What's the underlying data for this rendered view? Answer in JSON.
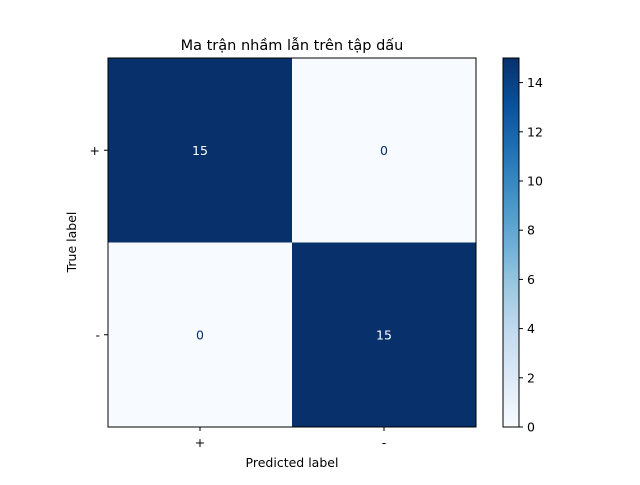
{
  "chart_data": {
    "type": "heatmap",
    "title": "Ma trận nhầm lẫn trên tập dấu",
    "xlabel": "Predicted label",
    "ylabel": "True label",
    "x_categories": [
      "+",
      "-"
    ],
    "y_categories": [
      "+",
      "-"
    ],
    "values": [
      [
        15,
        0
      ],
      [
        0,
        15
      ]
    ],
    "colormap": "Blues",
    "color_low": "#f7fbff",
    "color_high": "#08306b",
    "colorbar": {
      "range": [
        0,
        15
      ],
      "ticks": [
        0,
        2,
        4,
        6,
        8,
        10,
        12,
        14
      ]
    },
    "text_color_light": "#ffffff",
    "text_color_dark": "#08306b"
  }
}
